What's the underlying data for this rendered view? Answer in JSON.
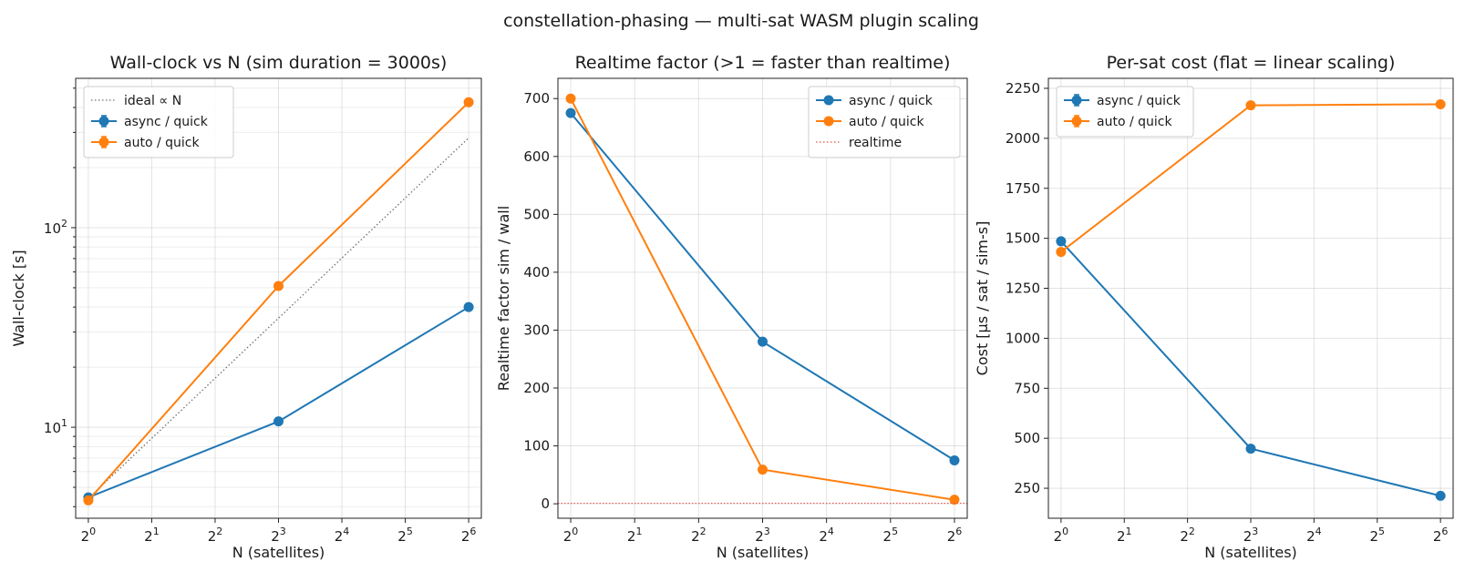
{
  "suptitle": "constellation-phasing — multi-sat WASM plugin scaling",
  "chart_data": [
    {
      "type": "line",
      "title": "Wall-clock vs N (sim duration = 3000s)",
      "xlabel": "N (satellites)",
      "ylabel": "Wall-clock [s]",
      "x_scale": "log2",
      "y_scale": "log10",
      "xlim_exp": [
        -0.2,
        6.2
      ],
      "ylim": [
        3.5,
        560
      ],
      "x_ticks": [
        {
          "base": "2",
          "exp": "0"
        },
        {
          "base": "2",
          "exp": "1"
        },
        {
          "base": "2",
          "exp": "2"
        },
        {
          "base": "2",
          "exp": "3"
        },
        {
          "base": "2",
          "exp": "4"
        },
        {
          "base": "2",
          "exp": "5"
        },
        {
          "base": "2",
          "exp": "6"
        }
      ],
      "y_ticks": [
        {
          "base": "10",
          "exp": "1",
          "value": 10
        },
        {
          "base": "10",
          "exp": "2",
          "value": 100
        }
      ],
      "grid": true,
      "legend_position": "top-left",
      "series": [
        {
          "name": "ideal ∝ N",
          "color": "#707070",
          "style": "dotted",
          "marker": false,
          "x": [
            1,
            64
          ],
          "y": [
            4.4,
            281.6
          ]
        },
        {
          "name": "async / quick",
          "color": "#1f77b4",
          "style": "solid",
          "marker": true,
          "errorbar": true,
          "x": [
            1,
            8,
            64
          ],
          "y": [
            4.45,
            10.7,
            40
          ]
        },
        {
          "name": "auto / quick",
          "color": "#ff7f0e",
          "style": "solid",
          "marker": true,
          "errorbar": true,
          "x": [
            1,
            8,
            64
          ],
          "y": [
            4.3,
            51,
            425
          ]
        }
      ]
    },
    {
      "type": "line",
      "title": "Realtime factor (>1 = faster than realtime)",
      "xlabel": "N (satellites)",
      "ylabel": "Realtime factor  sim / wall",
      "x_scale": "log2",
      "y_scale": "linear",
      "xlim_exp": [
        -0.2,
        6.2
      ],
      "ylim": [
        -25,
        735
      ],
      "x_ticks": [
        {
          "base": "2",
          "exp": "0"
        },
        {
          "base": "2",
          "exp": "1"
        },
        {
          "base": "2",
          "exp": "2"
        },
        {
          "base": "2",
          "exp": "3"
        },
        {
          "base": "2",
          "exp": "4"
        },
        {
          "base": "2",
          "exp": "5"
        },
        {
          "base": "2",
          "exp": "6"
        }
      ],
      "y_ticks": [
        {
          "label": "0",
          "value": 0
        },
        {
          "label": "100",
          "value": 100
        },
        {
          "label": "200",
          "value": 200
        },
        {
          "label": "300",
          "value": 300
        },
        {
          "label": "400",
          "value": 400
        },
        {
          "label": "500",
          "value": 500
        },
        {
          "label": "600",
          "value": 600
        },
        {
          "label": "700",
          "value": 700
        }
      ],
      "grid": true,
      "legend_position": "top-right",
      "series": [
        {
          "name": "async / quick",
          "color": "#1f77b4",
          "style": "solid",
          "marker": true,
          "x": [
            1,
            8,
            64
          ],
          "y": [
            675,
            280,
            75
          ]
        },
        {
          "name": "auto / quick",
          "color": "#ff7f0e",
          "style": "solid",
          "marker": true,
          "x": [
            1,
            8,
            64
          ],
          "y": [
            700,
            59,
            7
          ]
        },
        {
          "name": "realtime",
          "color": "#e8524a",
          "style": "dotted",
          "marker": false,
          "hline": 1
        }
      ]
    },
    {
      "type": "line",
      "title": "Per-sat cost (flat = linear scaling)",
      "xlabel": "N (satellites)",
      "ylabel": "Cost [µs / sat / sim-s]",
      "x_scale": "log2",
      "y_scale": "linear",
      "xlim_exp": [
        -0.2,
        6.2
      ],
      "ylim": [
        100,
        2300
      ],
      "x_ticks": [
        {
          "base": "2",
          "exp": "0"
        },
        {
          "base": "2",
          "exp": "1"
        },
        {
          "base": "2",
          "exp": "2"
        },
        {
          "base": "2",
          "exp": "3"
        },
        {
          "base": "2",
          "exp": "4"
        },
        {
          "base": "2",
          "exp": "5"
        },
        {
          "base": "2",
          "exp": "6"
        }
      ],
      "y_ticks": [
        {
          "label": "250",
          "value": 250
        },
        {
          "label": "500",
          "value": 500
        },
        {
          "label": "750",
          "value": 750
        },
        {
          "label": "1000",
          "value": 1000
        },
        {
          "label": "1250",
          "value": 1250
        },
        {
          "label": "1500",
          "value": 1500
        },
        {
          "label": "1750",
          "value": 1750
        },
        {
          "label": "2000",
          "value": 2000
        },
        {
          "label": "2250",
          "value": 2250
        }
      ],
      "grid": true,
      "legend_position": "top-left",
      "series": [
        {
          "name": "async / quick",
          "color": "#1f77b4",
          "style": "solid",
          "marker": true,
          "errorbar": true,
          "x": [
            1,
            8,
            64
          ],
          "y": [
            1485,
            448,
            212
          ]
        },
        {
          "name": "auto / quick",
          "color": "#ff7f0e",
          "style": "solid",
          "marker": true,
          "errorbar": true,
          "x": [
            1,
            8,
            64
          ],
          "y": [
            1432,
            2165,
            2170
          ]
        }
      ]
    }
  ]
}
